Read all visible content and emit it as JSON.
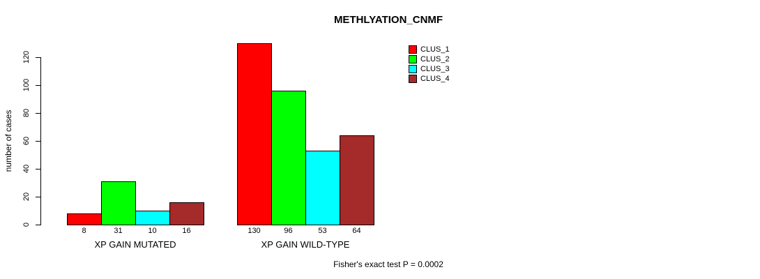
{
  "title": "METHLYATION_CNMF",
  "y_axis_label": "number of cases",
  "footer_annotation": "Fisher's exact test P = 0.0002",
  "legend": {
    "items": [
      {
        "label": "CLUS_1",
        "color": "#FF0000"
      },
      {
        "label": "CLUS_2",
        "color": "#00FF00"
      },
      {
        "label": "CLUS_3",
        "color": "#00FFFF"
      },
      {
        "label": "CLUS_4",
        "color": "#A52A2A"
      }
    ]
  },
  "chart_data": {
    "type": "bar",
    "title": "METHLYATION_CNMF",
    "xlabel": "",
    "ylabel": "number of cases",
    "ylim": [
      0,
      130
    ],
    "yticks": [
      0,
      20,
      40,
      60,
      80,
      100,
      120
    ],
    "categories": [
      "XP GAIN MUTATED",
      "XP GAIN WILD-TYPE"
    ],
    "series": [
      {
        "name": "CLUS_1",
        "color": "#FF0000",
        "values": [
          8,
          130
        ]
      },
      {
        "name": "CLUS_2",
        "color": "#00FF00",
        "values": [
          31,
          96
        ]
      },
      {
        "name": "CLUS_3",
        "color": "#00FFFF",
        "values": [
          10,
          53
        ]
      },
      {
        "name": "CLUS_4",
        "color": "#A52A2A",
        "values": [
          16,
          64
        ]
      }
    ],
    "bar_value_labels_shown": true,
    "legend_position": "top-right",
    "grid": false,
    "annotation": "Fisher's exact test P = 0.0002"
  }
}
